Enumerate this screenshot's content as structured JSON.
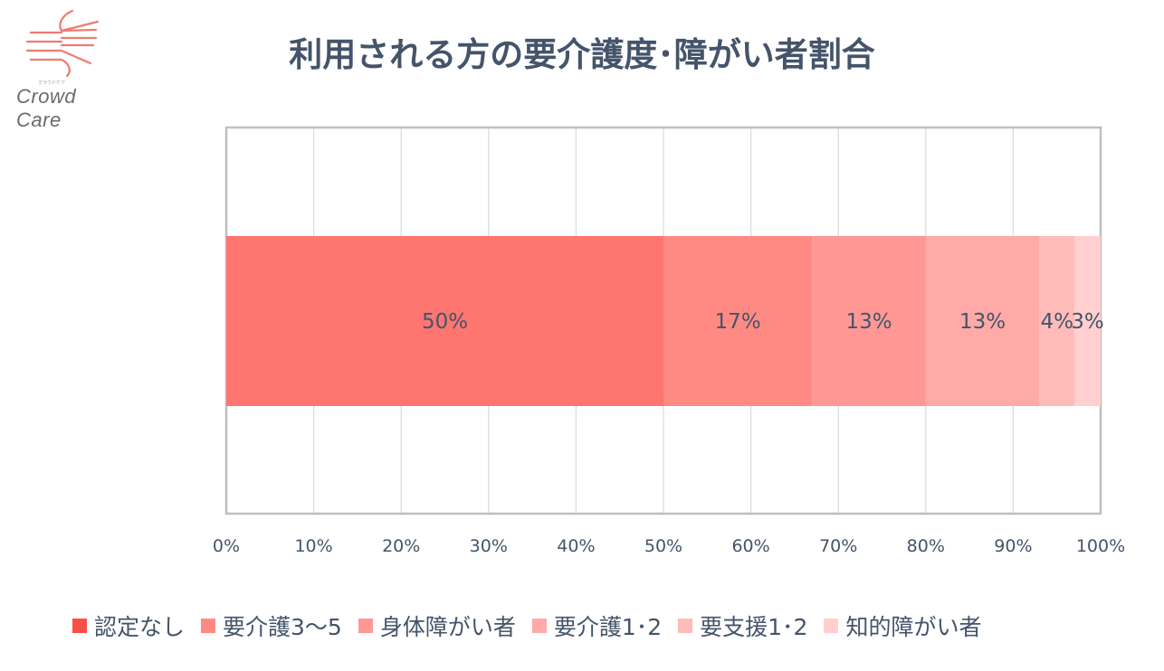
{
  "logo": {
    "name": "Crowd Care",
    "kana": "クラウドケア",
    "icon": "hands-logo-icon"
  },
  "chart_data": {
    "type": "bar",
    "orientation": "horizontal-stacked",
    "title": "利用される方の要介護度･障がい者割合",
    "xlim": [
      0,
      100
    ],
    "x_ticks": [
      "0%",
      "10%",
      "20%",
      "30%",
      "40%",
      "50%",
      "60%",
      "70%",
      "80%",
      "90%",
      "100%"
    ],
    "grid": true,
    "legend_position": "bottom",
    "series": [
      {
        "name": "認定なし",
        "value": 50,
        "label": "50%",
        "color": "#ff7570"
      },
      {
        "name": "要介護3～5",
        "value": 17,
        "label": "17%",
        "color": "#ff8a83"
      },
      {
        "name": "身体障がい者",
        "value": 13,
        "label": "13%",
        "color": "#ff9895"
      },
      {
        "name": "要介護1･2",
        "value": 13,
        "label": "13%",
        "color": "#ffaaa7"
      },
      {
        "name": "要支援1･2",
        "value": 4,
        "label": "4%",
        "color": "#ffbbb8"
      },
      {
        "name": "知的障がい者",
        "value": 3,
        "label": "3%",
        "color": "#ffd0cf"
      }
    ]
  }
}
